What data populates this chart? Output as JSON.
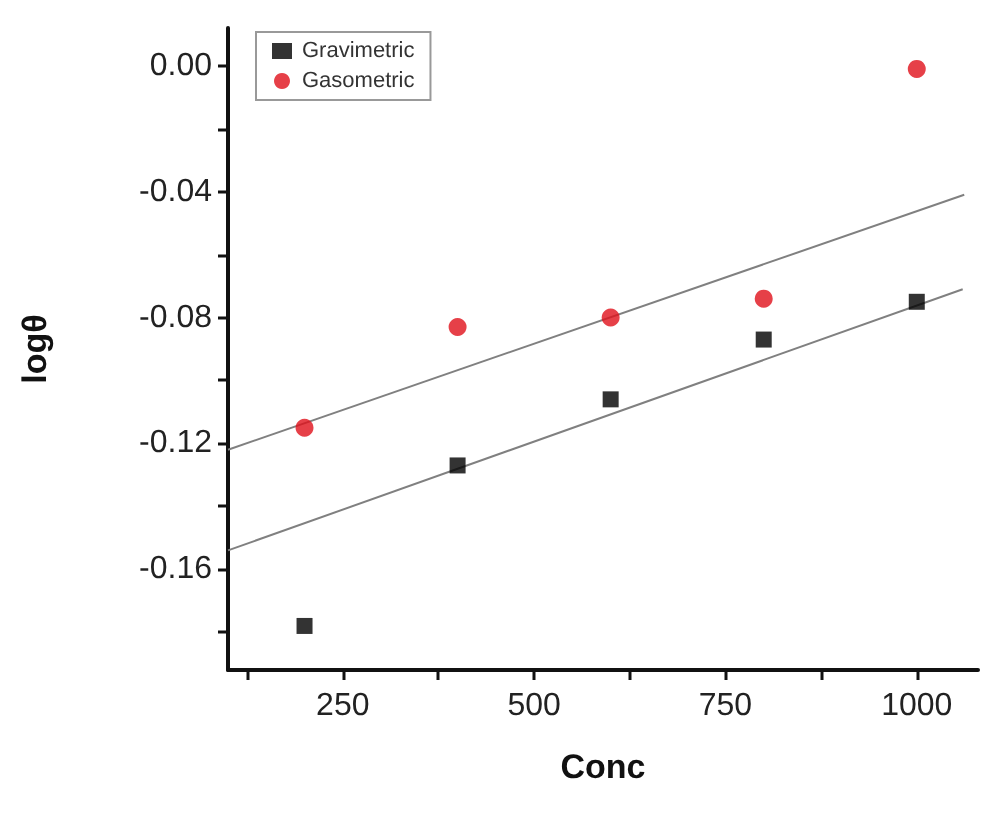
{
  "chart_data": {
    "type": "scatter",
    "xlabel": "Conc",
    "ylabel": "logθ",
    "xlim": [
      100,
      1080
    ],
    "ylim": [
      -0.192,
      0.012
    ],
    "xticks": [
      {
        "value": 125,
        "label": null
      },
      250,
      {
        "value": 375,
        "label": null
      },
      500,
      {
        "value": 625,
        "label": null
      },
      750,
      {
        "value": 875,
        "label": null
      },
      1000
    ],
    "yticks": [
      {
        "value": -0.18,
        "label": null
      },
      {
        "value": -0.16,
        "label": "-0.16"
      },
      {
        "value": -0.14,
        "label": null
      },
      {
        "value": -0.12,
        "label": "-0.12"
      },
      {
        "value": -0.1,
        "label": null
      },
      {
        "value": -0.08,
        "label": "-0.08"
      },
      {
        "value": -0.06,
        "label": null
      },
      {
        "value": -0.04,
        "label": "-0.04"
      },
      {
        "value": -0.02,
        "label": null
      },
      {
        "value": 0,
        "label": "0.00"
      }
    ],
    "x": [
      200,
      400,
      600,
      800,
      1000
    ],
    "series": [
      {
        "name": "Gravimetric",
        "color": "#000000",
        "marker": "square",
        "values": [
          -0.178,
          -0.127,
          -0.106,
          -0.087,
          -0.075
        ]
      },
      {
        "name": "Gasometric",
        "color": "#e0101a",
        "marker": "circle",
        "values": [
          -0.115,
          -0.083,
          -0.08,
          -0.074,
          -0.001
        ]
      },
      {
        "type": "line",
        "color": "#808080",
        "marker": "none",
        "x": [
          100,
          1062
        ],
        "values": [
          -0.122,
          -0.041
        ]
      },
      {
        "type": "line",
        "color": "#808080",
        "marker": "none",
        "x": [
          100,
          1060
        ],
        "values": [
          -0.154,
          -0.071
        ]
      }
    ],
    "legend": "top left",
    "grid": false
  }
}
